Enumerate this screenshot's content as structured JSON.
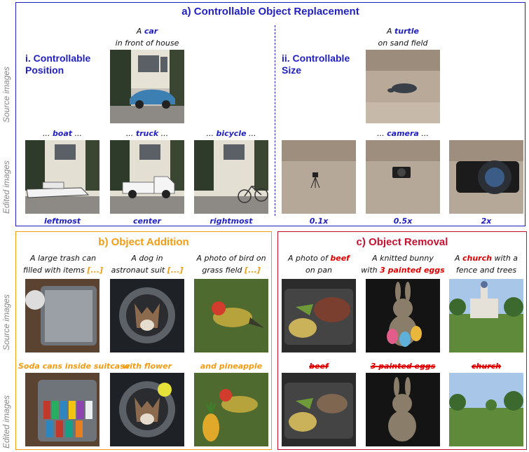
{
  "panel_a": {
    "title": "a) Controllable Object Replacement",
    "position_title_1": "i. Controllable",
    "position_title_2": "Position",
    "size_title_1": "ii. Controllable",
    "size_title_2": "Size",
    "source_car": {
      "pre": "A ",
      "obj": "car",
      "post": "in front of house"
    },
    "source_turtle": {
      "pre": "A ",
      "obj": "turtle",
      "post": "on sand field"
    },
    "pos_edits": [
      {
        "obj": "boat",
        "label": "leftmost"
      },
      {
        "obj": "truck",
        "label": "center"
      },
      {
        "obj": "bicycle",
        "label": "rightmost"
      }
    ],
    "size_obj": "camera",
    "size_labels": [
      "0.1x",
      "0.5x",
      "2x"
    ],
    "dots_pre": "... ",
    "dots_post": " ..."
  },
  "panel_b": {
    "title": "b) Object Addition",
    "sources": [
      {
        "line1": "A large trash can",
        "line2_pre": "filled with items ",
        "line2_hl": "[...]"
      },
      {
        "line1": "A dog in",
        "line2_pre": "astronaut suit ",
        "line2_hl": "[...]"
      },
      {
        "line1": "A photo of bird on",
        "line2_pre": "grass field ",
        "line2_hl": "[...]"
      }
    ],
    "edits": [
      "Soda cans inside suitcase",
      "with flower",
      "and pineapple"
    ]
  },
  "panel_c": {
    "title": "c) Object Removal",
    "sources": [
      {
        "l1_pre": "A photo of ",
        "l1_hl": "beef",
        "l1_post": "",
        "line2": "on pan"
      },
      {
        "l1_pre": "A knitted bunny",
        "l1_hl": "",
        "l1_post": "",
        "line2_pre": "with ",
        "line2_hl": "3 painted eggs"
      },
      {
        "l1_pre": "A ",
        "l1_hl": "church",
        "l1_post": " with a",
        "line2": "fence and trees"
      }
    ],
    "removed": [
      "beef",
      "3 painted eggs",
      "church"
    ]
  },
  "side_labels": {
    "source": "Source images",
    "edited": "Edited images"
  },
  "colors": {
    "blue": "#1f1fc4",
    "orange": "#f39c12",
    "red": "#e00000"
  }
}
